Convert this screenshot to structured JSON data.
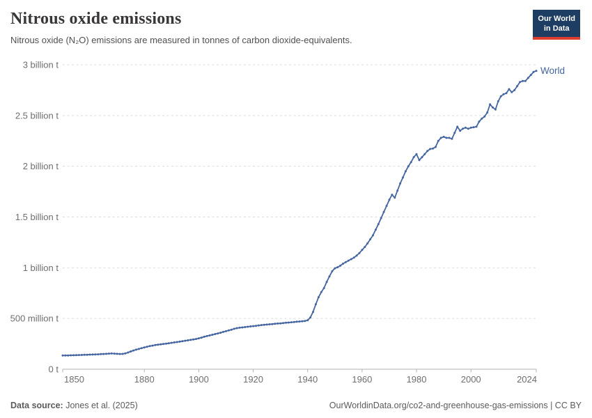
{
  "header": {
    "title": "Nitrous oxide emissions",
    "subtitle": "Nitrous oxide (N₂O) emissions are measured in tonnes of carbon dioxide-equivalents.",
    "logo": {
      "line1": "Our World",
      "line2": "in Data"
    }
  },
  "footer": {
    "source_label": "Data source:",
    "source_value": "Jones et al. (2025)",
    "url": "OurWorldinData.org/co2-and-greenhouse-gas-emissions",
    "separator": " | ",
    "license": "CC BY"
  },
  "colors": {
    "line": "#4565a0",
    "series_label": "#4565a0",
    "logo_bg": "#1d3d63",
    "logo_accent": "#dc3d2e",
    "grid": "#dcdcdc",
    "axis": "#b3b3b3",
    "tick_text": "#6e6e6e"
  },
  "chart_data": {
    "type": "line",
    "title": "Nitrous oxide emissions",
    "subtitle": "Nitrous oxide (N₂O) emissions are measured in tonnes of carbon dioxide-equivalents.",
    "series_label": "World",
    "unit": "tonnes of carbon dioxide-equivalents",
    "y_unit_of_values": "million tonnes CO₂e",
    "grid": "horizontal dashed",
    "legend_position": "end-of-line",
    "markers": "yearly dots",
    "xlim": [
      1850,
      2024
    ],
    "ylim": [
      0,
      3000
    ],
    "x_ticks": [
      1850,
      1880,
      1900,
      1920,
      1940,
      1960,
      1980,
      2000,
      2024
    ],
    "y_ticks": [
      {
        "value": 0,
        "label": "0 t"
      },
      {
        "value": 500,
        "label": "500 million t"
      },
      {
        "value": 1000,
        "label": "1 billion t"
      },
      {
        "value": 1500,
        "label": "1.5 billion t"
      },
      {
        "value": 2000,
        "label": "2 billion t"
      },
      {
        "value": 2500,
        "label": "2.5 billion t"
      },
      {
        "value": 3000,
        "label": "3 billion t"
      }
    ],
    "x_start": 1850,
    "values": [
      135,
      136,
      136,
      137,
      138,
      139,
      140,
      141,
      142,
      143,
      144,
      145,
      146,
      147,
      149,
      150,
      152,
      154,
      155,
      154,
      152,
      150,
      151,
      156,
      165,
      175,
      185,
      193,
      200,
      208,
      215,
      222,
      228,
      233,
      238,
      242,
      245,
      249,
      252,
      256,
      260,
      264,
      268,
      272,
      276,
      281,
      285,
      289,
      294,
      298,
      305,
      312,
      320,
      327,
      333,
      340,
      347,
      353,
      360,
      368,
      375,
      383,
      390,
      398,
      405,
      409,
      412,
      415,
      419,
      422,
      425,
      428,
      432,
      435,
      438,
      440,
      443,
      445,
      448,
      450,
      452,
      455,
      458,
      460,
      463,
      465,
      468,
      470,
      473,
      476,
      482,
      510,
      565,
      640,
      710,
      760,
      800,
      860,
      915,
      965,
      995,
      1005,
      1020,
      1040,
      1055,
      1070,
      1085,
      1100,
      1120,
      1145,
      1175,
      1205,
      1240,
      1280,
      1320,
      1375,
      1430,
      1490,
      1550,
      1610,
      1670,
      1720,
      1690,
      1760,
      1830,
      1890,
      1950,
      2000,
      2040,
      2090,
      2120,
      2060,
      2090,
      2120,
      2150,
      2170,
      2175,
      2190,
      2250,
      2280,
      2290,
      2280,
      2280,
      2270,
      2330,
      2390,
      2350,
      2370,
      2380,
      2370,
      2380,
      2385,
      2390,
      2440,
      2470,
      2490,
      2530,
      2610,
      2580,
      2560,
      2640,
      2690,
      2710,
      2720,
      2760,
      2730,
      2750,
      2790,
      2830,
      2840,
      2840,
      2870,
      2900,
      2930,
      2940
    ]
  }
}
